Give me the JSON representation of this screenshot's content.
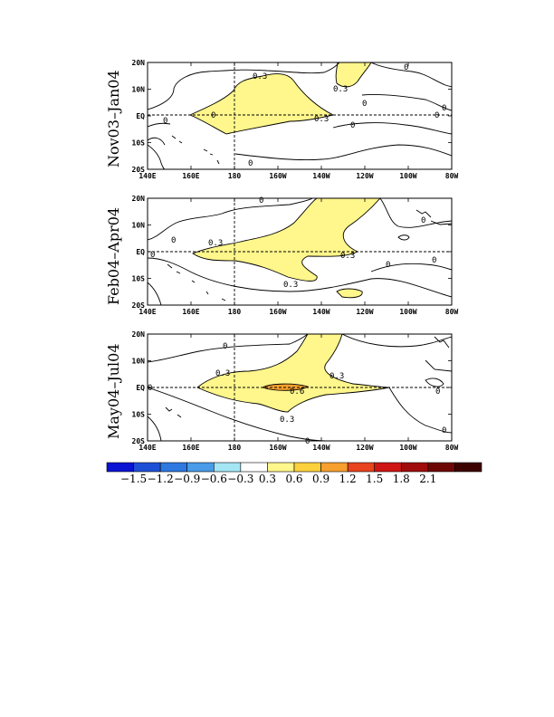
{
  "panels": [
    {
      "title": "Nov03–Jan04",
      "contour_labels": [
        "0.3",
        "0.3",
        "0.3",
        "0",
        "0",
        "0",
        "0",
        "0",
        "0",
        "0",
        "0"
      ]
    },
    {
      "title": "Feb04–Apr04",
      "contour_labels": [
        "0.3",
        "0.3",
        "0.3",
        "0",
        "0",
        "0",
        "0",
        "0",
        "0"
      ]
    },
    {
      "title": "May04–Jul04",
      "contour_labels": [
        "0.3",
        "0.3",
        "0.6",
        "0.3",
        "0",
        "0",
        "0",
        "0",
        "0"
      ]
    }
  ],
  "lat_ticks": [
    "20N",
    "10N",
    "EQ",
    "10S",
    "20S"
  ],
  "lon_ticks": [
    "140E",
    "160E",
    "180",
    "160W",
    "140W",
    "120W",
    "100W",
    "80W"
  ],
  "colorbar": {
    "colors": [
      "#0a14d2",
      "#1e50d7",
      "#2e78e0",
      "#4a9be8",
      "#a5e6f5",
      "#ffffff",
      "#fff68c",
      "#fdd13c",
      "#f7a02e",
      "#e8421e",
      "#cf1414",
      "#a00c0c",
      "#6e0606",
      "#3c0202"
    ],
    "labels": [
      "−1.5",
      "−1.2",
      "−0.9",
      "−0.6",
      "−0.3",
      "0.3",
      "0.6",
      "0.9",
      "1.2",
      "1.5",
      "1.8",
      "2.1"
    ]
  },
  "colors": {
    "positive_fill": "#fff68c",
    "strong_fill": "#f7a02e"
  }
}
